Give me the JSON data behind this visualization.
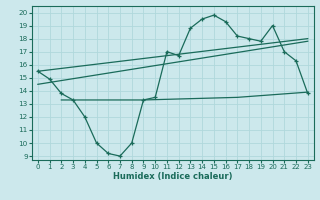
{
  "x": [
    0,
    1,
    2,
    3,
    4,
    5,
    6,
    7,
    8,
    9,
    10,
    11,
    12,
    13,
    14,
    15,
    16,
    17,
    18,
    19,
    20,
    21,
    22,
    23
  ],
  "y_curve": [
    15.5,
    14.9,
    13.8,
    13.3,
    12.0,
    10.0,
    9.2,
    9.0,
    10.0,
    13.3,
    13.5,
    17.0,
    16.7,
    18.8,
    19.5,
    19.8,
    19.3,
    18.2,
    18.0,
    17.8,
    19.0,
    17.0,
    16.3,
    13.8
  ],
  "line1_x": [
    0,
    23
  ],
  "line1_y": [
    15.5,
    18.0
  ],
  "line2_x": [
    0,
    23
  ],
  "line2_y": [
    14.5,
    17.8
  ],
  "line3_x": [
    2,
    9,
    17,
    23
  ],
  "line3_y": [
    13.3,
    13.3,
    13.5,
    13.9
  ],
  "xlim": [
    -0.5,
    23.5
  ],
  "ylim": [
    8.7,
    20.5
  ],
  "yticks": [
    9,
    10,
    11,
    12,
    13,
    14,
    15,
    16,
    17,
    18,
    19,
    20
  ],
  "xticks": [
    0,
    1,
    2,
    3,
    4,
    5,
    6,
    7,
    8,
    9,
    10,
    11,
    12,
    13,
    14,
    15,
    16,
    17,
    18,
    19,
    20,
    21,
    22,
    23
  ],
  "xlabel": "Humidex (Indice chaleur)",
  "line_color": "#1a6b5a",
  "bg_color": "#cce8ec",
  "grid_color": "#b0d8dc"
}
